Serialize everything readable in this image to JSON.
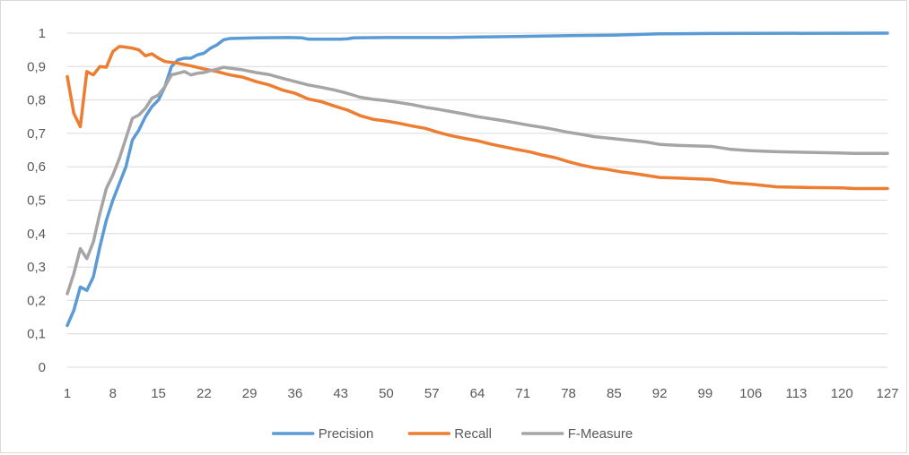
{
  "chart_data": {
    "type": "line",
    "title": "",
    "xlabel": "",
    "ylabel": "",
    "ylim": [
      0,
      1
    ],
    "y_ticks": [
      "0",
      "0,1",
      "0,2",
      "0,3",
      "0,4",
      "0,5",
      "0,6",
      "0,7",
      "0,8",
      "0,9",
      "1"
    ],
    "x_range": [
      1,
      127
    ],
    "x_ticks": [
      "1",
      "8",
      "15",
      "22",
      "29",
      "36",
      "43",
      "50",
      "57",
      "64",
      "71",
      "78",
      "85",
      "92",
      "99",
      "106",
      "113",
      "120",
      "127"
    ],
    "grid": "horizontal",
    "legend_position": "bottom",
    "series": [
      {
        "name": "Precision",
        "color": "#5b9bd5",
        "points": [
          [
            1,
            0.125
          ],
          [
            2,
            0.17
          ],
          [
            3,
            0.24
          ],
          [
            4,
            0.23
          ],
          [
            5,
            0.27
          ],
          [
            6,
            0.36
          ],
          [
            7,
            0.44
          ],
          [
            8,
            0.5
          ],
          [
            9,
            0.55
          ],
          [
            10,
            0.6
          ],
          [
            11,
            0.68
          ],
          [
            12,
            0.71
          ],
          [
            13,
            0.75
          ],
          [
            14,
            0.78
          ],
          [
            15,
            0.8
          ],
          [
            16,
            0.84
          ],
          [
            17,
            0.9
          ],
          [
            18,
            0.92
          ],
          [
            19,
            0.925
          ],
          [
            20,
            0.925
          ],
          [
            21,
            0.935
          ],
          [
            22,
            0.94
          ],
          [
            23,
            0.955
          ],
          [
            24,
            0.965
          ],
          [
            25,
            0.98
          ],
          [
            26,
            0.984
          ],
          [
            28,
            0.985
          ],
          [
            30,
            0.986
          ],
          [
            35,
            0.987
          ],
          [
            37,
            0.986
          ],
          [
            38,
            0.982
          ],
          [
            40,
            0.982
          ],
          [
            43,
            0.982
          ],
          [
            44,
            0.983
          ],
          [
            45,
            0.986
          ],
          [
            50,
            0.987
          ],
          [
            60,
            0.987
          ],
          [
            62,
            0.988
          ],
          [
            70,
            0.99
          ],
          [
            80,
            0.993
          ],
          [
            85,
            0.994
          ],
          [
            92,
            0.998
          ],
          [
            100,
            0.999
          ],
          [
            127,
            1.0
          ]
        ]
      },
      {
        "name": "Recall",
        "color": "#ed7d31",
        "points": [
          [
            1,
            0.87
          ],
          [
            2,
            0.76
          ],
          [
            3,
            0.72
          ],
          [
            4,
            0.885
          ],
          [
            5,
            0.875
          ],
          [
            6,
            0.9
          ],
          [
            7,
            0.898
          ],
          [
            8,
            0.945
          ],
          [
            9,
            0.96
          ],
          [
            10,
            0.958
          ],
          [
            11,
            0.955
          ],
          [
            12,
            0.95
          ],
          [
            13,
            0.932
          ],
          [
            14,
            0.938
          ],
          [
            15,
            0.925
          ],
          [
            16,
            0.915
          ],
          [
            18,
            0.91
          ],
          [
            20,
            0.902
          ],
          [
            22,
            0.893
          ],
          [
            24,
            0.885
          ],
          [
            26,
            0.875
          ],
          [
            28,
            0.868
          ],
          [
            30,
            0.855
          ],
          [
            32,
            0.845
          ],
          [
            34,
            0.83
          ],
          [
            36,
            0.82
          ],
          [
            38,
            0.803
          ],
          [
            40,
            0.795
          ],
          [
            42,
            0.782
          ],
          [
            44,
            0.77
          ],
          [
            46,
            0.753
          ],
          [
            48,
            0.742
          ],
          [
            50,
            0.737
          ],
          [
            52,
            0.73
          ],
          [
            54,
            0.722
          ],
          [
            56,
            0.715
          ],
          [
            58,
            0.703
          ],
          [
            60,
            0.693
          ],
          [
            62,
            0.685
          ],
          [
            64,
            0.678
          ],
          [
            66,
            0.668
          ],
          [
            68,
            0.66
          ],
          [
            70,
            0.652
          ],
          [
            72,
            0.645
          ],
          [
            74,
            0.635
          ],
          [
            76,
            0.627
          ],
          [
            78,
            0.615
          ],
          [
            80,
            0.605
          ],
          [
            82,
            0.597
          ],
          [
            84,
            0.592
          ],
          [
            86,
            0.585
          ],
          [
            88,
            0.58
          ],
          [
            90,
            0.574
          ],
          [
            92,
            0.568
          ],
          [
            95,
            0.566
          ],
          [
            100,
            0.562
          ],
          [
            103,
            0.552
          ],
          [
            106,
            0.548
          ],
          [
            110,
            0.54
          ],
          [
            115,
            0.538
          ],
          [
            120,
            0.537
          ],
          [
            122,
            0.535
          ],
          [
            127,
            0.535
          ]
        ]
      },
      {
        "name": "F-Measure",
        "color": "#a5a5a5",
        "points": [
          [
            1,
            0.22
          ],
          [
            2,
            0.28
          ],
          [
            3,
            0.355
          ],
          [
            4,
            0.325
          ],
          [
            5,
            0.375
          ],
          [
            6,
            0.46
          ],
          [
            7,
            0.535
          ],
          [
            8,
            0.575
          ],
          [
            9,
            0.625
          ],
          [
            10,
            0.685
          ],
          [
            11,
            0.745
          ],
          [
            12,
            0.755
          ],
          [
            13,
            0.775
          ],
          [
            14,
            0.805
          ],
          [
            15,
            0.815
          ],
          [
            16,
            0.84
          ],
          [
            17,
            0.875
          ],
          [
            18,
            0.88
          ],
          [
            19,
            0.885
          ],
          [
            20,
            0.875
          ],
          [
            21,
            0.88
          ],
          [
            22,
            0.882
          ],
          [
            23,
            0.888
          ],
          [
            24,
            0.892
          ],
          [
            25,
            0.898
          ],
          [
            26,
            0.895
          ],
          [
            28,
            0.89
          ],
          [
            30,
            0.882
          ],
          [
            32,
            0.876
          ],
          [
            34,
            0.865
          ],
          [
            36,
            0.855
          ],
          [
            38,
            0.845
          ],
          [
            40,
            0.838
          ],
          [
            42,
            0.83
          ],
          [
            44,
            0.82
          ],
          [
            46,
            0.808
          ],
          [
            48,
            0.802
          ],
          [
            50,
            0.798
          ],
          [
            52,
            0.792
          ],
          [
            54,
            0.786
          ],
          [
            56,
            0.778
          ],
          [
            58,
            0.772
          ],
          [
            60,
            0.765
          ],
          [
            62,
            0.758
          ],
          [
            64,
            0.75
          ],
          [
            66,
            0.744
          ],
          [
            68,
            0.738
          ],
          [
            70,
            0.731
          ],
          [
            72,
            0.724
          ],
          [
            74,
            0.718
          ],
          [
            76,
            0.711
          ],
          [
            78,
            0.703
          ],
          [
            80,
            0.697
          ],
          [
            82,
            0.69
          ],
          [
            84,
            0.686
          ],
          [
            86,
            0.682
          ],
          [
            88,
            0.678
          ],
          [
            90,
            0.674
          ],
          [
            92,
            0.667
          ],
          [
            95,
            0.664
          ],
          [
            100,
            0.661
          ],
          [
            103,
            0.652
          ],
          [
            106,
            0.648
          ],
          [
            110,
            0.645
          ],
          [
            115,
            0.643
          ],
          [
            120,
            0.641
          ],
          [
            122,
            0.64
          ],
          [
            127,
            0.64
          ]
        ]
      }
    ]
  }
}
